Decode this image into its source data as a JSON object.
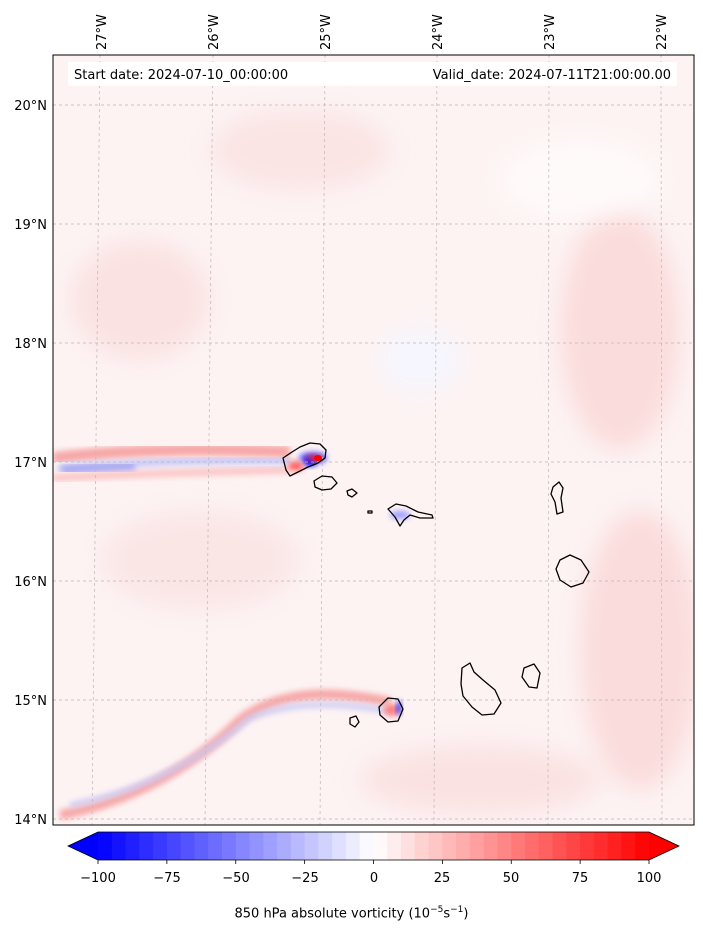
{
  "header": {
    "start_date": "Start date: 2024-07-10_00:00:00",
    "valid_date": "Valid_date: 2024-07-11T21:00:00.00"
  },
  "map": {
    "lon_labels": [
      "27°W",
      "26°W",
      "25°W",
      "24°W",
      "23°W",
      "22°W"
    ],
    "lat_labels": [
      "20°N",
      "19°N",
      "18°N",
      "17°N",
      "16°N",
      "15°N",
      "14°N"
    ],
    "gridlines": "dashed-gray"
  },
  "colorbar": {
    "tick_labels": [
      "−100",
      "−75",
      "−50",
      "−25",
      "0",
      "25",
      "50",
      "75",
      "100"
    ],
    "vmin": -100,
    "vmax": 100,
    "colormap": "bwr",
    "extend": "both",
    "label_prefix": "850 hPa absolute vorticity (10",
    "label_exp1": "−5",
    "label_mid": "s",
    "label_exp2": "−1",
    "label_suffix": ")"
  },
  "colors": {
    "min": "#0000ff",
    "mid": "#ffffff",
    "max": "#ff0000",
    "coastline": "#000000"
  }
}
